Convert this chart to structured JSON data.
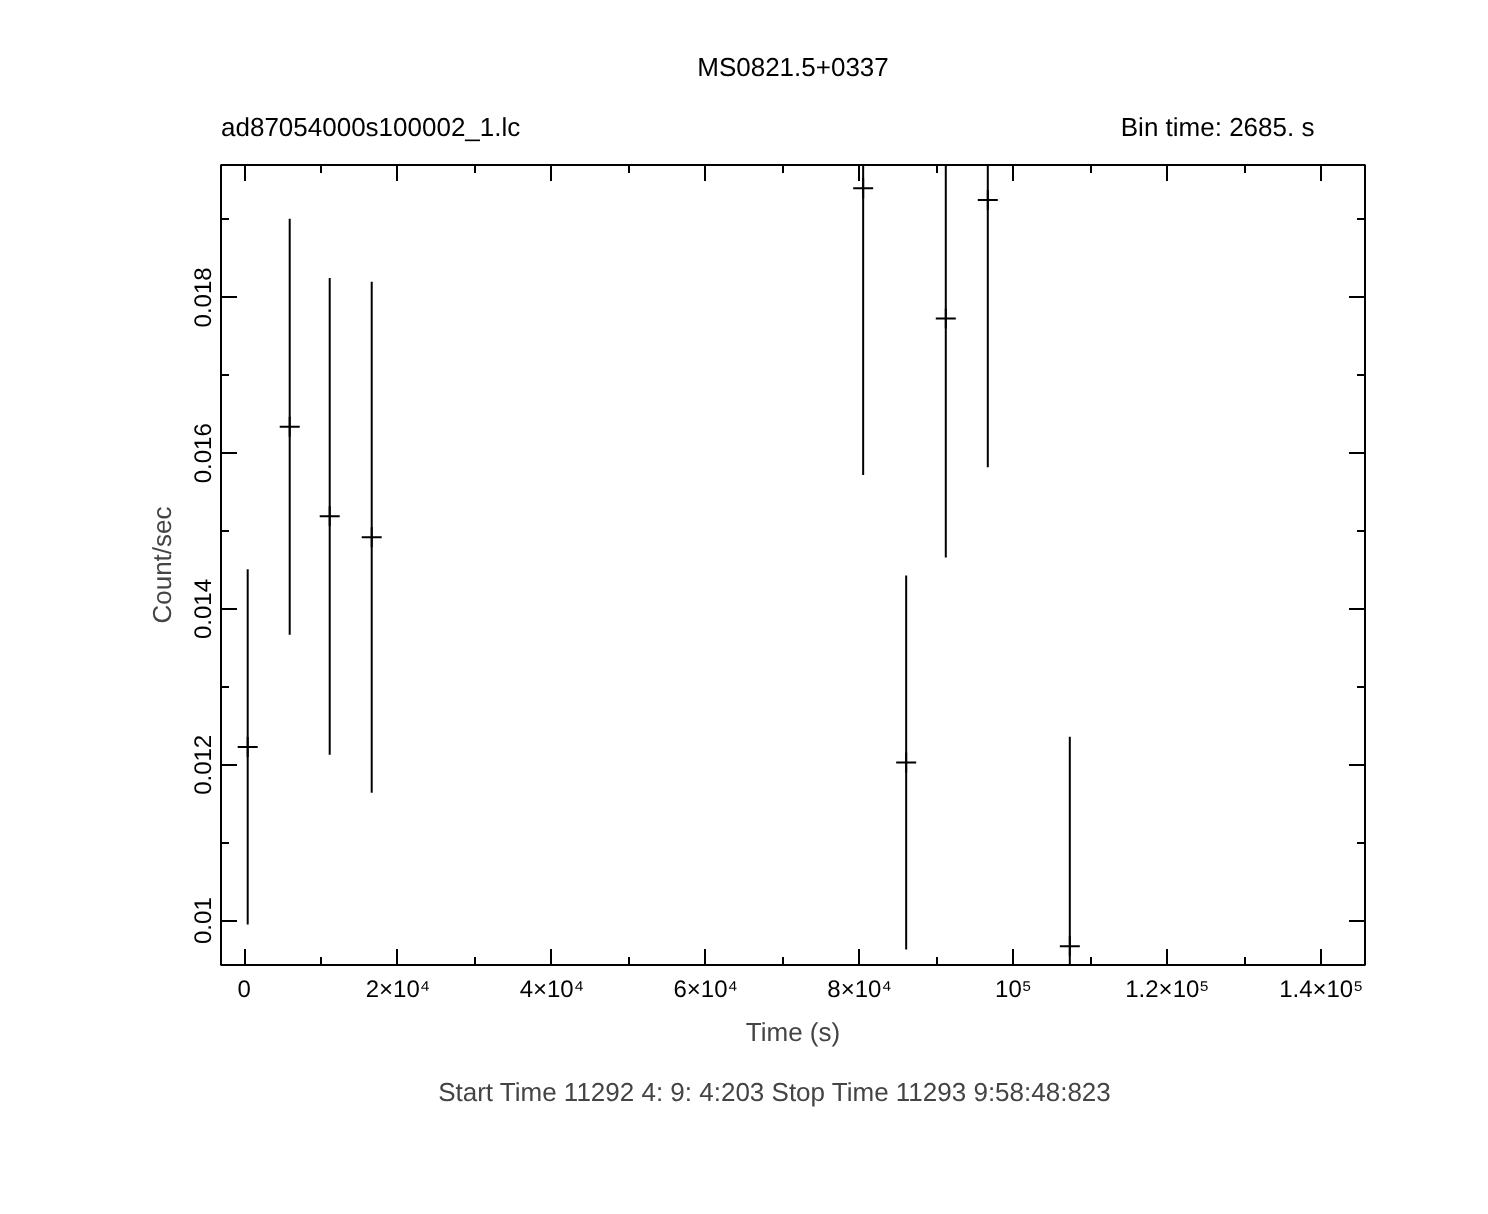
{
  "chart_data": {
    "type": "scatter",
    "title": "MS0821.5+0337",
    "xlabel": "Time (s)",
    "ylabel": "Count/sec",
    "annotations": [
      "ad87054000s100002_1.lc",
      "Bin time:    2685.     s",
      "Start Time 11292  4: 9: 4:203    Stop Time 11293  9:58:48:823"
    ],
    "x": [
      470,
      5930,
      11130,
      16590,
      80470,
      86060,
      91210,
      96670,
      107330
    ],
    "values": [
      0.01223,
      0.01634,
      0.01519,
      0.01492,
      0.0194,
      0.01203,
      0.01773,
      0.01925,
      0.00967
    ],
    "errors": [
      0.00228,
      0.00267,
      0.00306,
      0.00328,
      [
        0.01572,
        0.0197
      ],
      0.0024,
      [
        0.01466,
        0.0197
      ],
      [
        0.01582,
        0.0197
      ],
      [
        0.00943,
        0.01236
      ]
    ],
    "color": "#000000",
    "marker": "cross",
    "xlim": [
      -3000,
      145700
    ],
    "ylim": [
      0.00943,
      0.0197
    ],
    "xticks": [
      0,
      {
        "value": 20000,
        "label": "2×10⁴"
      },
      {
        "value": 40000,
        "label": "4×10⁴"
      },
      {
        "value": 60000,
        "label": "6×10⁴"
      },
      {
        "value": 80000,
        "label": "8×10⁴"
      },
      {
        "value": 100000,
        "label": "10⁵"
      },
      {
        "value": 120000,
        "label": "1.2×10⁵"
      },
      {
        "value": 140000,
        "label": "1.4×10⁵"
      }
    ],
    "yticks": [
      0.01,
      0.012,
      0.014,
      0.016,
      0.018
    ]
  }
}
